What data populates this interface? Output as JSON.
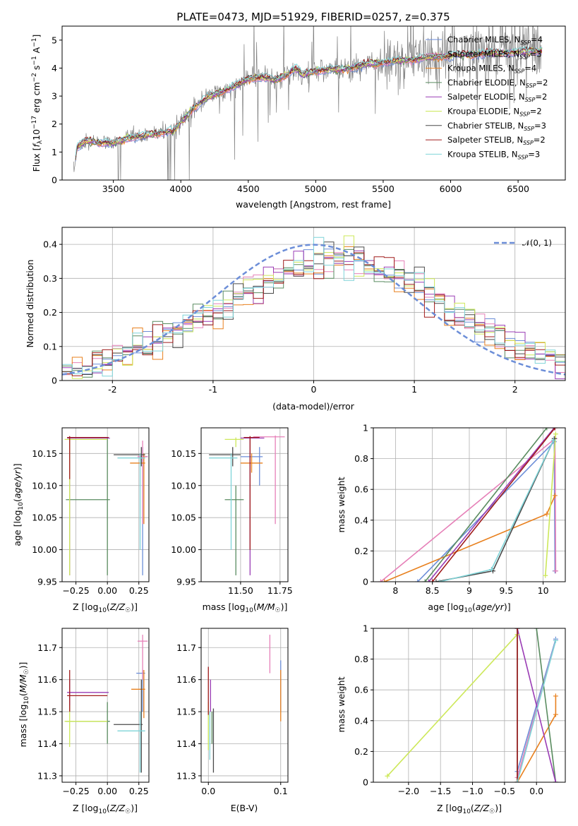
{
  "chart_data": [
    {
      "id": "spectrum",
      "type": "line",
      "title": "PLATE=0473, MJD=51929, FIBERID=0257, z=0.375",
      "xlabel": "wavelength [Angstrom, rest frame]",
      "ylabel": "Flux [f_λ 10^-17 erg cm^-2 s^-1 A^-1]",
      "xlim": [
        3120,
        6850
      ],
      "ylim": [
        0,
        5.5
      ],
      "xticks": [
        3500,
        4000,
        4500,
        5000,
        5500,
        6000,
        6500
      ],
      "yticks": [
        0,
        1,
        2,
        3,
        4,
        5
      ],
      "data_color": "#808080",
      "continuum_x": [
        3200,
        3230,
        3300,
        3400,
        3500,
        3600,
        3700,
        3800,
        3900,
        3940,
        4000,
        4100,
        4200,
        4300,
        4400,
        4500,
        4600,
        4700,
        4800,
        4850,
        4900,
        5000,
        5100,
        5200,
        5300,
        5400,
        5500,
        5600,
        5700,
        5800,
        5900,
        6000,
        6200,
        6400,
        6600,
        6680
      ],
      "continuum_y": [
        0.0,
        1.15,
        1.4,
        1.35,
        1.3,
        1.5,
        1.55,
        1.65,
        1.75,
        1.7,
        2.05,
        2.6,
        2.95,
        3.15,
        3.35,
        3.6,
        3.7,
        3.55,
        3.8,
        4.0,
        3.75,
        3.9,
        3.95,
        3.95,
        4.05,
        4.15,
        4.2,
        4.25,
        4.3,
        4.35,
        4.4,
        4.45,
        4.5,
        4.55,
        4.6,
        4.62
      ],
      "legend": [
        "Chabrier MILES, N_SSP=4",
        "Salpeter MILES, N_SSP=3",
        "Kroupa MILES, N_SSP=4",
        "Chabrier ELODIE, N_SSP=2",
        "Salpeter ELODIE, N_SSP=2",
        "Kroupa ELODIE, N_SSP=2",
        "Chabrier STELIB, N_SSP=3",
        "Salpeter STELIB, N_SSP=2",
        "Kroupa STELIB, N_SSP=3"
      ],
      "legend_position": "top-right"
    },
    {
      "id": "residuals",
      "type": "line",
      "xlabel": "(data-model)/error",
      "ylabel": "Normed distribution",
      "xlim": [
        -2.5,
        2.5
      ],
      "ylim": [
        0,
        0.45
      ],
      "xticks": [
        -2,
        -1,
        0,
        1,
        2
      ],
      "yticks": [
        0.0,
        0.1,
        0.2,
        0.3,
        0.4
      ],
      "grid": true,
      "reference_curve": {
        "label": "𝒩(0, 1)",
        "mu": 0,
        "sigma": 1
      },
      "bin_width": 0.1,
      "hist_centers": [
        -2.45,
        -2.35,
        -2.25,
        -2.15,
        -2.05,
        -1.95,
        -1.85,
        -1.75,
        -1.65,
        -1.55,
        -1.45,
        -1.35,
        -1.25,
        -1.15,
        -1.05,
        -0.95,
        -0.85,
        -0.75,
        -0.65,
        -0.55,
        -0.45,
        -0.35,
        -0.25,
        -0.15,
        -0.05,
        0.05,
        0.15,
        0.25,
        0.35,
        0.45,
        0.55,
        0.65,
        0.75,
        0.85,
        0.95,
        1.05,
        1.15,
        1.25,
        1.35,
        1.45,
        1.55,
        1.65,
        1.75,
        1.85,
        1.95,
        2.05,
        2.15,
        2.25,
        2.35,
        2.45
      ],
      "hist_mean": [
        0.03,
        0.035,
        0.04,
        0.05,
        0.06,
        0.075,
        0.085,
        0.1,
        0.11,
        0.125,
        0.14,
        0.15,
        0.165,
        0.18,
        0.19,
        0.205,
        0.22,
        0.245,
        0.265,
        0.28,
        0.295,
        0.31,
        0.32,
        0.33,
        0.335,
        0.345,
        0.36,
        0.37,
        0.36,
        0.35,
        0.335,
        0.32,
        0.31,
        0.3,
        0.29,
        0.28,
        0.26,
        0.235,
        0.21,
        0.19,
        0.175,
        0.16,
        0.145,
        0.13,
        0.11,
        0.1,
        0.09,
        0.08,
        0.07,
        0.06
      ]
    },
    {
      "id": "age-vs-Z",
      "type": "scatter",
      "xlabel": "Z [log10(Z/Z☉)]",
      "ylabel": "age  [log10(age/yr)]",
      "xlim": [
        -0.36,
        0.33
      ],
      "ylim": [
        9.95,
        10.19
      ],
      "xticks": [
        -0.25,
        0.0,
        0.25
      ],
      "xticklabels": [
        "−0.25",
        "0.00",
        "0.25"
      ],
      "yticks": [
        9.95,
        10.0,
        10.05,
        10.1,
        10.15
      ],
      "yticklabels": [
        "9.95",
        "10.00",
        "10.05",
        "10.10",
        "10.15"
      ],
      "grid": true,
      "points": [
        {
          "s": 0,
          "x": 0.28,
          "y": 10.145,
          "xe": [
            0.24,
            0.32
          ],
          "ye": [
            9.96,
            10.16
          ]
        },
        {
          "s": 1,
          "x": 0.28,
          "y": 10.145,
          "xe": [
            0.24,
            0.32
          ],
          "ye": [
            10.04,
            10.17
          ]
        },
        {
          "s": 2,
          "x": 0.29,
          "y": 10.135,
          "xe": [
            0.18,
            0.3
          ],
          "ye": [
            10.04,
            10.15
          ]
        },
        {
          "s": 3,
          "x": 0.0,
          "y": 10.078,
          "xe": [
            -0.33,
            0.02
          ],
          "ye": [
            9.96,
            10.175
          ]
        },
        {
          "s": 4,
          "x": -0.3,
          "y": 10.174,
          "xe": [
            -0.32,
            0.02
          ],
          "ye": [
            9.96,
            10.176
          ]
        },
        {
          "s": 5,
          "x": -0.3,
          "y": 10.172,
          "xe": [
            -0.34,
            0.0
          ],
          "ye": [
            9.96,
            10.175
          ]
        },
        {
          "s": 6,
          "x": 0.27,
          "y": 10.148,
          "xe": [
            0.05,
            0.3
          ],
          "ye": [
            10.13,
            10.16
          ]
        },
        {
          "s": 7,
          "x": -0.3,
          "y": 10.175,
          "xe": [
            -0.32,
            0.01
          ],
          "ye": [
            10.11,
            10.177
          ]
        },
        {
          "s": 8,
          "x": 0.26,
          "y": 10.143,
          "xe": [
            0.08,
            0.3
          ],
          "ye": [
            10.0,
            10.15
          ]
        }
      ]
    },
    {
      "id": "age-vs-mass",
      "type": "scatter",
      "xlabel": "mass [log10(M/M☉)]",
      "ylabel": "",
      "xlim": [
        11.25,
        11.8
      ],
      "ylim": [
        9.95,
        10.19
      ],
      "xticks": [
        11.5,
        11.75
      ],
      "xticklabels": [
        "11.50",
        "11.75"
      ],
      "yticks": [
        9.95,
        10.0,
        10.05,
        10.1,
        10.15
      ],
      "yticklabels": [
        "9.95",
        "10.00",
        "10.05",
        "10.10",
        "10.15"
      ],
      "grid": true,
      "points": [
        {
          "s": 0,
          "x": 11.62,
          "y": 10.145,
          "xe": [
            11.5,
            11.64
          ],
          "ye": [
            10.1,
            10.16
          ]
        },
        {
          "s": 1,
          "x": 11.72,
          "y": 10.176,
          "xe": [
            11.58,
            11.78
          ],
          "ye": [
            10.04,
            10.178
          ]
        },
        {
          "s": 2,
          "x": 11.57,
          "y": 10.135,
          "xe": [
            11.5,
            11.64
          ],
          "ye": [
            10.12,
            10.15
          ]
        },
        {
          "s": 3,
          "x": 11.47,
          "y": 10.078,
          "xe": [
            11.4,
            11.52
          ],
          "ye": [
            9.96,
            10.1
          ]
        },
        {
          "s": 4,
          "x": 11.56,
          "y": 10.174,
          "xe": [
            11.5,
            11.65
          ],
          "ye": [
            9.96,
            10.176
          ]
        },
        {
          "s": 5,
          "x": 11.47,
          "y": 10.172,
          "xe": [
            11.4,
            11.52
          ],
          "ye": [
            10.16,
            10.175
          ]
        },
        {
          "s": 6,
          "x": 11.45,
          "y": 10.148,
          "xe": [
            11.3,
            11.5
          ],
          "ye": [
            10.13,
            10.16
          ]
        },
        {
          "s": 7,
          "x": 11.56,
          "y": 10.175,
          "xe": [
            11.52,
            11.62
          ],
          "ye": [
            10.0,
            10.177
          ]
        },
        {
          "s": 8,
          "x": 11.44,
          "y": 10.143,
          "xe": [
            11.3,
            11.48
          ],
          "ye": [
            10.0,
            10.15
          ]
        }
      ]
    },
    {
      "id": "weight-vs-age",
      "type": "line",
      "xlabel": "age  [log10(age/yr)]",
      "ylabel": "mass weight",
      "xlim": [
        7.7,
        10.3
      ],
      "ylim": [
        0,
        1
      ],
      "xticks": [
        8.0,
        8.5,
        9.0,
        9.5,
        10.0
      ],
      "yticks": [
        0.0,
        0.2,
        0.4,
        0.6,
        0.8,
        1.0
      ],
      "grid": true,
      "series": [
        {
          "s": 0,
          "x": [
            8.3,
            10.15,
            10.16
          ],
          "y": [
            0.0,
            0.91,
            0.07
          ]
        },
        {
          "s": 1,
          "x": [
            7.8,
            10.16,
            10.17
          ],
          "y": [
            0.0,
            0.93,
            0.07
          ]
        },
        {
          "s": 2,
          "x": [
            7.85,
            10.05,
            10.16
          ],
          "y": [
            0.0,
            0.44,
            0.56
          ]
        },
        {
          "s": 3,
          "x": [
            8.4,
            10.05
          ],
          "y": [
            0.0,
            1.0
          ]
        },
        {
          "s": 4,
          "x": [
            8.45,
            10.15
          ],
          "y": [
            0.0,
            1.0
          ]
        },
        {
          "s": 5,
          "x": [
            10.03,
            10.17
          ],
          "y": [
            0.04,
            0.96
          ]
        },
        {
          "s": 6,
          "x": [
            8.55,
            9.32,
            10.15
          ],
          "y": [
            0.0,
            0.07,
            0.93
          ]
        },
        {
          "s": 7,
          "x": [
            8.5,
            10.16
          ],
          "y": [
            0.0,
            1.0
          ]
        },
        {
          "s": 8,
          "x": [
            8.6,
            9.3,
            10.14
          ],
          "y": [
            0.0,
            0.08,
            0.92
          ]
        }
      ]
    },
    {
      "id": "mass-vs-Z",
      "type": "scatter",
      "xlabel": "Z [log10(Z/Z☉)]",
      "ylabel": "mass [log10(M/M☉)]",
      "xlim": [
        -0.36,
        0.33
      ],
      "ylim": [
        11.28,
        11.76
      ],
      "xticks": [
        -0.25,
        0.0,
        0.25
      ],
      "xticklabels": [
        "−0.25",
        "0.00",
        "0.25"
      ],
      "yticks": [
        11.3,
        11.4,
        11.5,
        11.6,
        11.7
      ],
      "grid": true,
      "points": [
        {
          "s": 0,
          "x": 0.28,
          "y": 11.62,
          "xe": [
            0.23,
            0.3
          ],
          "ye": [
            11.5,
            11.63
          ]
        },
        {
          "s": 1,
          "x": 0.28,
          "y": 11.72,
          "xe": [
            0.24,
            0.32
          ],
          "ye": [
            11.6,
            11.74
          ]
        },
        {
          "s": 2,
          "x": 0.29,
          "y": 11.57,
          "xe": [
            0.19,
            0.3
          ],
          "ye": [
            11.48,
            11.63
          ]
        },
        {
          "s": 3,
          "x": 0.0,
          "y": 11.47,
          "xe": [
            -0.33,
            0.02
          ],
          "ye": [
            11.4,
            11.53
          ]
        },
        {
          "s": 4,
          "x": -0.3,
          "y": 11.56,
          "xe": [
            -0.32,
            0.01
          ],
          "ye": [
            11.5,
            11.6
          ]
        },
        {
          "s": 5,
          "x": -0.3,
          "y": 11.47,
          "xe": [
            -0.34,
            0.0
          ],
          "ye": [
            11.39,
            11.52
          ]
        },
        {
          "s": 6,
          "x": 0.27,
          "y": 11.46,
          "xe": [
            0.05,
            0.28
          ],
          "ye": [
            11.31,
            11.6
          ]
        },
        {
          "s": 7,
          "x": -0.3,
          "y": 11.55,
          "xe": [
            -0.32,
            0.0
          ],
          "ye": [
            11.5,
            11.63
          ]
        },
        {
          "s": 8,
          "x": 0.26,
          "y": 11.44,
          "xe": [
            0.08,
            0.3
          ],
          "ye": [
            11.31,
            11.5
          ]
        }
      ]
    },
    {
      "id": "mass-vs-EBV",
      "type": "scatter",
      "xlabel": "E(B-V)",
      "ylabel": "",
      "xlim": [
        -0.01,
        0.11
      ],
      "ylim": [
        11.28,
        11.76
      ],
      "xticks": [
        0.0,
        0.1
      ],
      "xticklabels": [
        "0.0",
        "0.1"
      ],
      "yticks": [
        11.3,
        11.4,
        11.5,
        11.6,
        11.7
      ],
      "grid": true,
      "points": [
        {
          "s": 0,
          "x": 0.1,
          "y": 11.6,
          "ye": [
            11.5,
            11.66
          ]
        },
        {
          "s": 1,
          "x": 0.085,
          "y": 11.7,
          "ye": [
            11.62,
            11.74
          ]
        },
        {
          "s": 2,
          "x": 0.1,
          "y": 11.55,
          "ye": [
            11.47,
            11.63
          ]
        },
        {
          "s": 3,
          "x": 0.005,
          "y": 11.45,
          "ye": [
            11.4,
            11.5
          ]
        },
        {
          "s": 4,
          "x": 0.003,
          "y": 11.55,
          "ye": [
            11.5,
            11.6
          ]
        },
        {
          "s": 5,
          "x": 0.0,
          "y": 11.45,
          "ye": [
            11.38,
            11.53
          ]
        },
        {
          "s": 6,
          "x": 0.007,
          "y": 11.4,
          "ye": [
            11.31,
            11.51
          ]
        },
        {
          "s": 7,
          "x": 0.0,
          "y": 11.55,
          "ye": [
            11.49,
            11.64
          ]
        },
        {
          "s": 8,
          "x": 0.002,
          "y": 11.45,
          "ye": [
            11.35,
            11.5
          ]
        }
      ]
    },
    {
      "id": "weight-vs-Z",
      "type": "line",
      "xlabel": "Z [log10(Z/Z☉)]",
      "ylabel": "mass weight",
      "xlim": [
        -2.55,
        0.45
      ],
      "ylim": [
        0,
        1
      ],
      "xticks": [
        -2.0,
        -1.5,
        -1.0,
        -0.5,
        0.0
      ],
      "xticklabels": [
        "−2.0",
        "−1.5",
        "−1.0",
        "−0.5",
        "0.0"
      ],
      "yticks": [
        0.0,
        0.2,
        0.4,
        0.6,
        0.8,
        1.0
      ],
      "grid": true,
      "series": [
        {
          "s": 0,
          "x": [
            -0.3,
            0.3
          ],
          "y": [
            0.07,
            0.93
          ]
        },
        {
          "s": 1,
          "x": [
            -0.3,
            0.3
          ],
          "y": [
            0.03,
            0.92
          ]
        },
        {
          "s": 2,
          "x": [
            -0.3,
            0.3,
            0.3
          ],
          "y": [
            0.0,
            0.44,
            0.56
          ]
        },
        {
          "s": 3,
          "x": [
            0.0,
            0.3
          ],
          "y": [
            1.0,
            0.0
          ]
        },
        {
          "s": 4,
          "x": [
            -0.3,
            0.3
          ],
          "y": [
            1.0,
            0.0
          ]
        },
        {
          "s": 5,
          "x": [
            -2.33,
            -0.3
          ],
          "y": [
            0.04,
            0.96
          ]
        },
        {
          "s": 6,
          "x": [
            -0.3,
            -0.3
          ],
          "y": [
            0.0,
            1.0
          ]
        },
        {
          "s": 7,
          "x": [
            -0.3,
            -0.3
          ],
          "y": [
            0.0,
            1.0
          ]
        },
        {
          "s": 8,
          "x": [
            -0.3,
            0.3
          ],
          "y": [
            0.0,
            0.92
          ]
        }
      ]
    }
  ],
  "series_colors": [
    "#6c8ed8",
    "#e680b8",
    "#e8801e",
    "#5a8c60",
    "#9a3cb5",
    "#cde85a",
    "#4a4a4a",
    "#a01c1c",
    "#7fd4d8"
  ]
}
